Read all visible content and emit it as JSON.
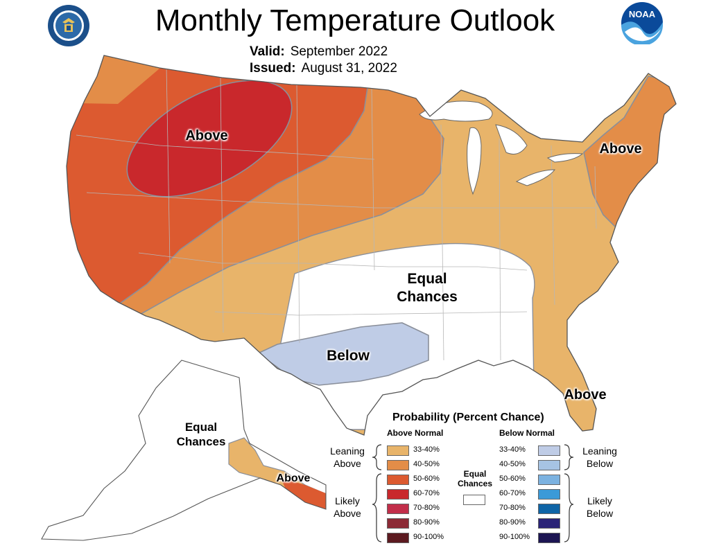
{
  "header": {
    "title": "Monthly Temperature Outlook",
    "valid_label": "Valid:",
    "valid_value": "September 2022",
    "issued_label": "Issued:",
    "issued_value": "August 31, 2022"
  },
  "logos": {
    "left_icon": "department-of-commerce-seal",
    "right_icon": "noaa-logo",
    "right_text": "NOAA"
  },
  "map": {
    "regions": [
      {
        "id": "northwest-above",
        "label": "Above"
      },
      {
        "id": "northeast-above",
        "label": "Above"
      },
      {
        "id": "central-equal-chances",
        "label": "Equal Chances"
      },
      {
        "id": "south-central-below",
        "label": "Below"
      },
      {
        "id": "florida-above",
        "label": "Above"
      },
      {
        "id": "alaska-equal-chances",
        "label": "Equal Chances"
      },
      {
        "id": "alaska-panhandle-above",
        "label": "Above"
      }
    ],
    "labels": {
      "nw_above": "Above",
      "ne_above": "Above",
      "equal_line1": "Equal",
      "equal_line2": "Chances",
      "below": "Below",
      "fl_above": "Above",
      "ak_equal_line1": "Equal",
      "ak_equal_line2": "Chances",
      "ak_above": "Above"
    }
  },
  "legend": {
    "title": "Probability (Percent Chance)",
    "above_header": "Above Normal",
    "below_header": "Below Normal",
    "equal_line1": "Equal",
    "equal_line2": "Chances",
    "leaning_above_1": "Leaning",
    "leaning_above_2": "Above",
    "likely_above_1": "Likely",
    "likely_above_2": "Above",
    "leaning_below_1": "Leaning",
    "leaning_below_2": "Below",
    "likely_below_1": "Likely",
    "likely_below_2": "Below",
    "above": [
      {
        "range": "33-40%",
        "color": "#e8b46a"
      },
      {
        "range": "40-50%",
        "color": "#e38d48"
      },
      {
        "range": "50-60%",
        "color": "#dc5a30"
      },
      {
        "range": "60-70%",
        "color": "#c9282c"
      },
      {
        "range": "70-80%",
        "color": "#c22e4a"
      },
      {
        "range": "80-90%",
        "color": "#8c2a36"
      },
      {
        "range": "90-100%",
        "color": "#5c1a20"
      }
    ],
    "below": [
      {
        "range": "33-40%",
        "color": "#bfcce6"
      },
      {
        "range": "40-50%",
        "color": "#a6c3e3"
      },
      {
        "range": "50-60%",
        "color": "#7cb2e0"
      },
      {
        "range": "60-70%",
        "color": "#3b9ad8"
      },
      {
        "range": "70-80%",
        "color": "#0e64a6"
      },
      {
        "range": "80-90%",
        "color": "#2a2377"
      },
      {
        "range": "90-100%",
        "color": "#1c1552"
      }
    ],
    "equal_color": "#ffffff"
  }
}
